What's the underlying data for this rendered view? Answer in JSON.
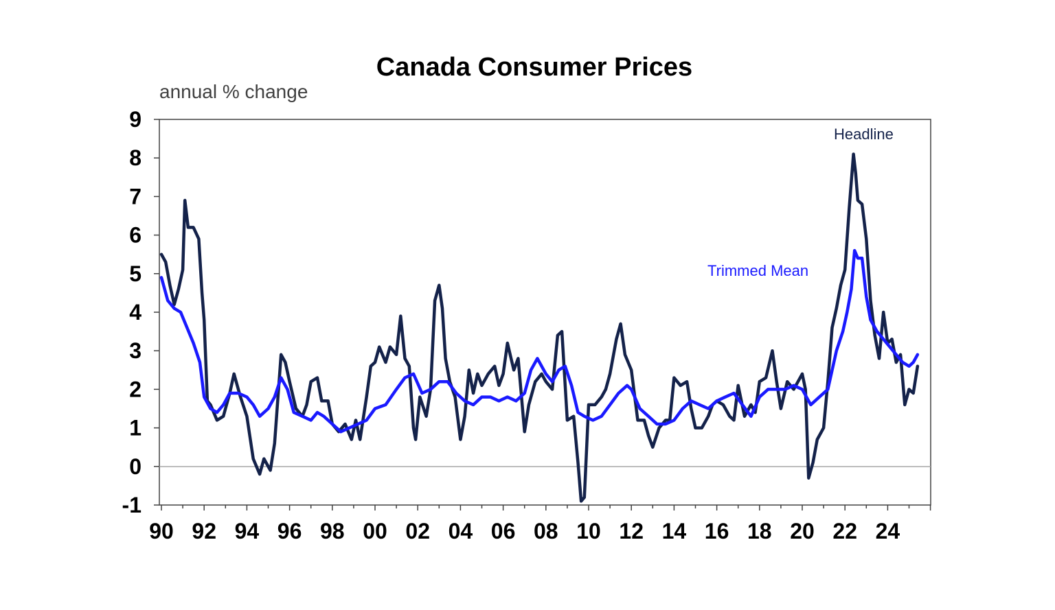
{
  "chart_data": {
    "type": "line",
    "title": "Canada Consumer Prices",
    "subtitle": "annual % change",
    "xlabel": "",
    "ylabel": "",
    "xlim": [
      1990.0,
      2025.8
    ],
    "ylim": [
      -1,
      9
    ],
    "yticks": [
      "9",
      "8",
      "7",
      "6",
      "5",
      "4",
      "3",
      "2",
      "1",
      "0",
      "-1"
    ],
    "xticks": [
      "90",
      "92",
      "94",
      "96",
      "98",
      "00",
      "02",
      "04",
      "06",
      "08",
      "10",
      "12",
      "14",
      "16",
      "18",
      "20",
      "22",
      "24"
    ],
    "grid": false,
    "zero_line": true,
    "colors": {
      "headline": "#14224a",
      "trimmed_mean": "#1a1aff",
      "zero_line": "#a6a6a6",
      "frame": "#404040"
    },
    "series": [
      {
        "name": "Headline",
        "x": [
          1990.0,
          1990.2,
          1990.4,
          1990.6,
          1990.8,
          1991.0,
          1991.1,
          1991.25,
          1991.5,
          1991.75,
          1991.9,
          1992.0,
          1992.15,
          1992.3,
          1992.6,
          1992.9,
          1993.2,
          1993.4,
          1993.7,
          1994.0,
          1994.3,
          1994.6,
          1994.8,
          1995.1,
          1995.3,
          1995.6,
          1995.8,
          1996.0,
          1996.3,
          1996.6,
          1996.8,
          1997.0,
          1997.3,
          1997.5,
          1997.8,
          1998.0,
          1998.3,
          1998.6,
          1998.9,
          1999.1,
          1999.3,
          1999.6,
          1999.8,
          2000.0,
          2000.2,
          2000.5,
          2000.7,
          2001.0,
          2001.2,
          2001.4,
          2001.6,
          2001.8,
          2001.9,
          2002.1,
          2002.4,
          2002.6,
          2002.8,
          2003.0,
          2003.15,
          2003.3,
          2003.5,
          2003.75,
          2004.0,
          2004.2,
          2004.4,
          2004.6,
          2004.8,
          2005.0,
          2005.3,
          2005.6,
          2005.8,
          2006.0,
          2006.2,
          2006.5,
          2006.7,
          2007.0,
          2007.2,
          2007.5,
          2007.8,
          2008.0,
          2008.3,
          2008.55,
          2008.75,
          2009.0,
          2009.3,
          2009.5,
          2009.65,
          2009.8,
          2010.0,
          2010.3,
          2010.6,
          2010.8,
          2011.0,
          2011.3,
          2011.5,
          2011.7,
          2012.0,
          2012.3,
          2012.6,
          2012.8,
          2013.0,
          2013.3,
          2013.6,
          2013.8,
          2014.0,
          2014.3,
          2014.6,
          2014.8,
          2015.0,
          2015.3,
          2015.6,
          2015.8,
          2016.0,
          2016.3,
          2016.6,
          2016.8,
          2017.0,
          2017.3,
          2017.6,
          2017.8,
          2018.0,
          2018.3,
          2018.6,
          2018.8,
          2019.0,
          2019.3,
          2019.6,
          2019.8,
          2020.0,
          2020.15,
          2020.3,
          2020.5,
          2020.7,
          2021.0,
          2021.2,
          2021.4,
          2021.6,
          2021.8,
          2022.0,
          2022.2,
          2022.4,
          2022.5,
          2022.6,
          2022.8,
          2023.0,
          2023.2,
          2023.4,
          2023.6,
          2023.8,
          2024.0,
          2024.2,
          2024.4,
          2024.6,
          2024.8,
          2025.0,
          2025.2,
          2025.4
        ],
        "values": [
          5.5,
          5.3,
          4.7,
          4.2,
          4.6,
          5.1,
          6.9,
          6.2,
          6.2,
          5.9,
          4.5,
          3.8,
          1.7,
          1.6,
          1.2,
          1.3,
          1.9,
          2.4,
          1.8,
          1.3,
          0.2,
          -0.2,
          0.2,
          -0.1,
          0.6,
          2.9,
          2.7,
          2.2,
          1.5,
          1.3,
          1.6,
          2.2,
          2.3,
          1.7,
          1.7,
          1.1,
          0.9,
          1.1,
          0.7,
          1.2,
          0.7,
          1.8,
          2.6,
          2.7,
          3.1,
          2.7,
          3.1,
          2.9,
          3.9,
          2.8,
          2.6,
          1.0,
          0.7,
          1.8,
          1.3,
          2.0,
          4.3,
          4.7,
          4.1,
          2.8,
          2.2,
          1.8,
          0.7,
          1.3,
          2.5,
          1.9,
          2.4,
          2.1,
          2.4,
          2.6,
          2.1,
          2.4,
          3.2,
          2.5,
          2.8,
          0.9,
          1.6,
          2.2,
          2.4,
          2.2,
          2.0,
          3.4,
          3.5,
          1.2,
          1.3,
          0.1,
          -0.9,
          -0.8,
          1.6,
          1.6,
          1.8,
          2.0,
          2.4,
          3.3,
          3.7,
          2.9,
          2.5,
          1.2,
          1.2,
          0.8,
          0.5,
          1.0,
          1.2,
          1.2,
          2.3,
          2.1,
          2.2,
          1.5,
          1.0,
          1.0,
          1.3,
          1.6,
          1.7,
          1.6,
          1.3,
          1.2,
          2.1,
          1.3,
          1.6,
          1.4,
          2.2,
          2.3,
          3.0,
          2.2,
          1.5,
          2.2,
          2.0,
          2.2,
          2.4,
          2.0,
          -0.3,
          0.1,
          0.7,
          1.0,
          2.2,
          3.6,
          4.1,
          4.7,
          5.1,
          6.7,
          8.1,
          7.6,
          6.9,
          6.8,
          5.9,
          4.3,
          3.4,
          2.8,
          4.0,
          3.2,
          3.3,
          2.7,
          2.9,
          1.6,
          2.0,
          1.9,
          2.6
        ]
      },
      {
        "name": "Trimmed Mean",
        "x": [
          1990.0,
          1990.3,
          1990.6,
          1990.9,
          1991.2,
          1991.5,
          1991.8,
          1992.0,
          1992.3,
          1992.6,
          1992.9,
          1993.2,
          1993.6,
          1994.0,
          1994.3,
          1994.6,
          1995.0,
          1995.3,
          1995.6,
          1995.9,
          1996.2,
          1996.6,
          1997.0,
          1997.3,
          1997.6,
          1998.0,
          1998.4,
          1998.8,
          1999.2,
          1999.6,
          2000.0,
          2000.5,
          2001.0,
          2001.4,
          2001.8,
          2002.2,
          2002.6,
          2003.0,
          2003.4,
          2003.8,
          2004.2,
          2004.6,
          2005.0,
          2005.4,
          2005.8,
          2006.2,
          2006.6,
          2007.0,
          2007.3,
          2007.6,
          2008.0,
          2008.3,
          2008.6,
          2008.9,
          2009.2,
          2009.5,
          2009.8,
          2010.2,
          2010.6,
          2011.0,
          2011.4,
          2011.8,
          2012.0,
          2012.4,
          2012.8,
          2013.2,
          2013.6,
          2014.0,
          2014.4,
          2014.8,
          2015.2,
          2015.6,
          2016.0,
          2016.4,
          2016.8,
          2017.2,
          2017.6,
          2018.0,
          2018.4,
          2018.8,
          2019.2,
          2019.6,
          2020.0,
          2020.4,
          2020.8,
          2021.2,
          2021.6,
          2021.9,
          2022.1,
          2022.3,
          2022.45,
          2022.6,
          2022.8,
          2023.0,
          2023.2,
          2023.5,
          2023.8,
          2024.1,
          2024.4,
          2024.7,
          2025.0,
          2025.2,
          2025.4
        ],
        "values": [
          4.9,
          4.3,
          4.1,
          4.0,
          3.6,
          3.2,
          2.7,
          1.8,
          1.5,
          1.4,
          1.6,
          1.9,
          1.9,
          1.8,
          1.6,
          1.3,
          1.5,
          1.8,
          2.3,
          2.0,
          1.4,
          1.3,
          1.2,
          1.4,
          1.3,
          1.1,
          0.9,
          1.0,
          1.1,
          1.2,
          1.5,
          1.6,
          2.0,
          2.3,
          2.4,
          1.9,
          2.0,
          2.2,
          2.2,
          1.9,
          1.7,
          1.6,
          1.8,
          1.8,
          1.7,
          1.8,
          1.7,
          1.9,
          2.5,
          2.8,
          2.4,
          2.2,
          2.5,
          2.6,
          2.1,
          1.4,
          1.3,
          1.2,
          1.3,
          1.6,
          1.9,
          2.1,
          2.0,
          1.5,
          1.3,
          1.1,
          1.1,
          1.2,
          1.5,
          1.7,
          1.6,
          1.5,
          1.7,
          1.8,
          1.9,
          1.6,
          1.3,
          1.8,
          2.0,
          2.0,
          2.0,
          2.1,
          2.0,
          1.6,
          1.8,
          2.0,
          3.0,
          3.5,
          4.0,
          4.6,
          5.6,
          5.4,
          5.4,
          4.4,
          3.8,
          3.5,
          3.3,
          3.1,
          2.9,
          2.7,
          2.6,
          2.7,
          2.9
        ]
      }
    ],
    "annotations": [
      "Headline",
      "Trimmed Mean"
    ]
  }
}
